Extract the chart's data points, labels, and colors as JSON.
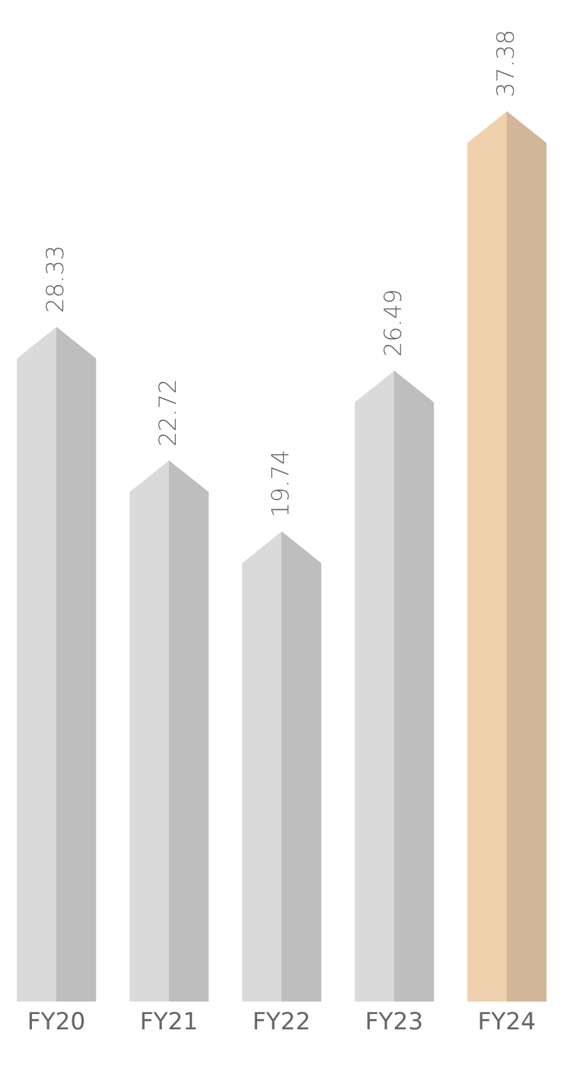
{
  "chart_data": {
    "type": "bar",
    "categories": [
      "FY20",
      "FY21",
      "FY22",
      "FY23",
      "FY24"
    ],
    "values": [
      28.33,
      22.72,
      19.74,
      26.49,
      37.38
    ],
    "colors": [
      "#dadada",
      "#dadada",
      "#dadada",
      "#dadada",
      "#f0d1ad"
    ],
    "data_labels": true
  }
}
